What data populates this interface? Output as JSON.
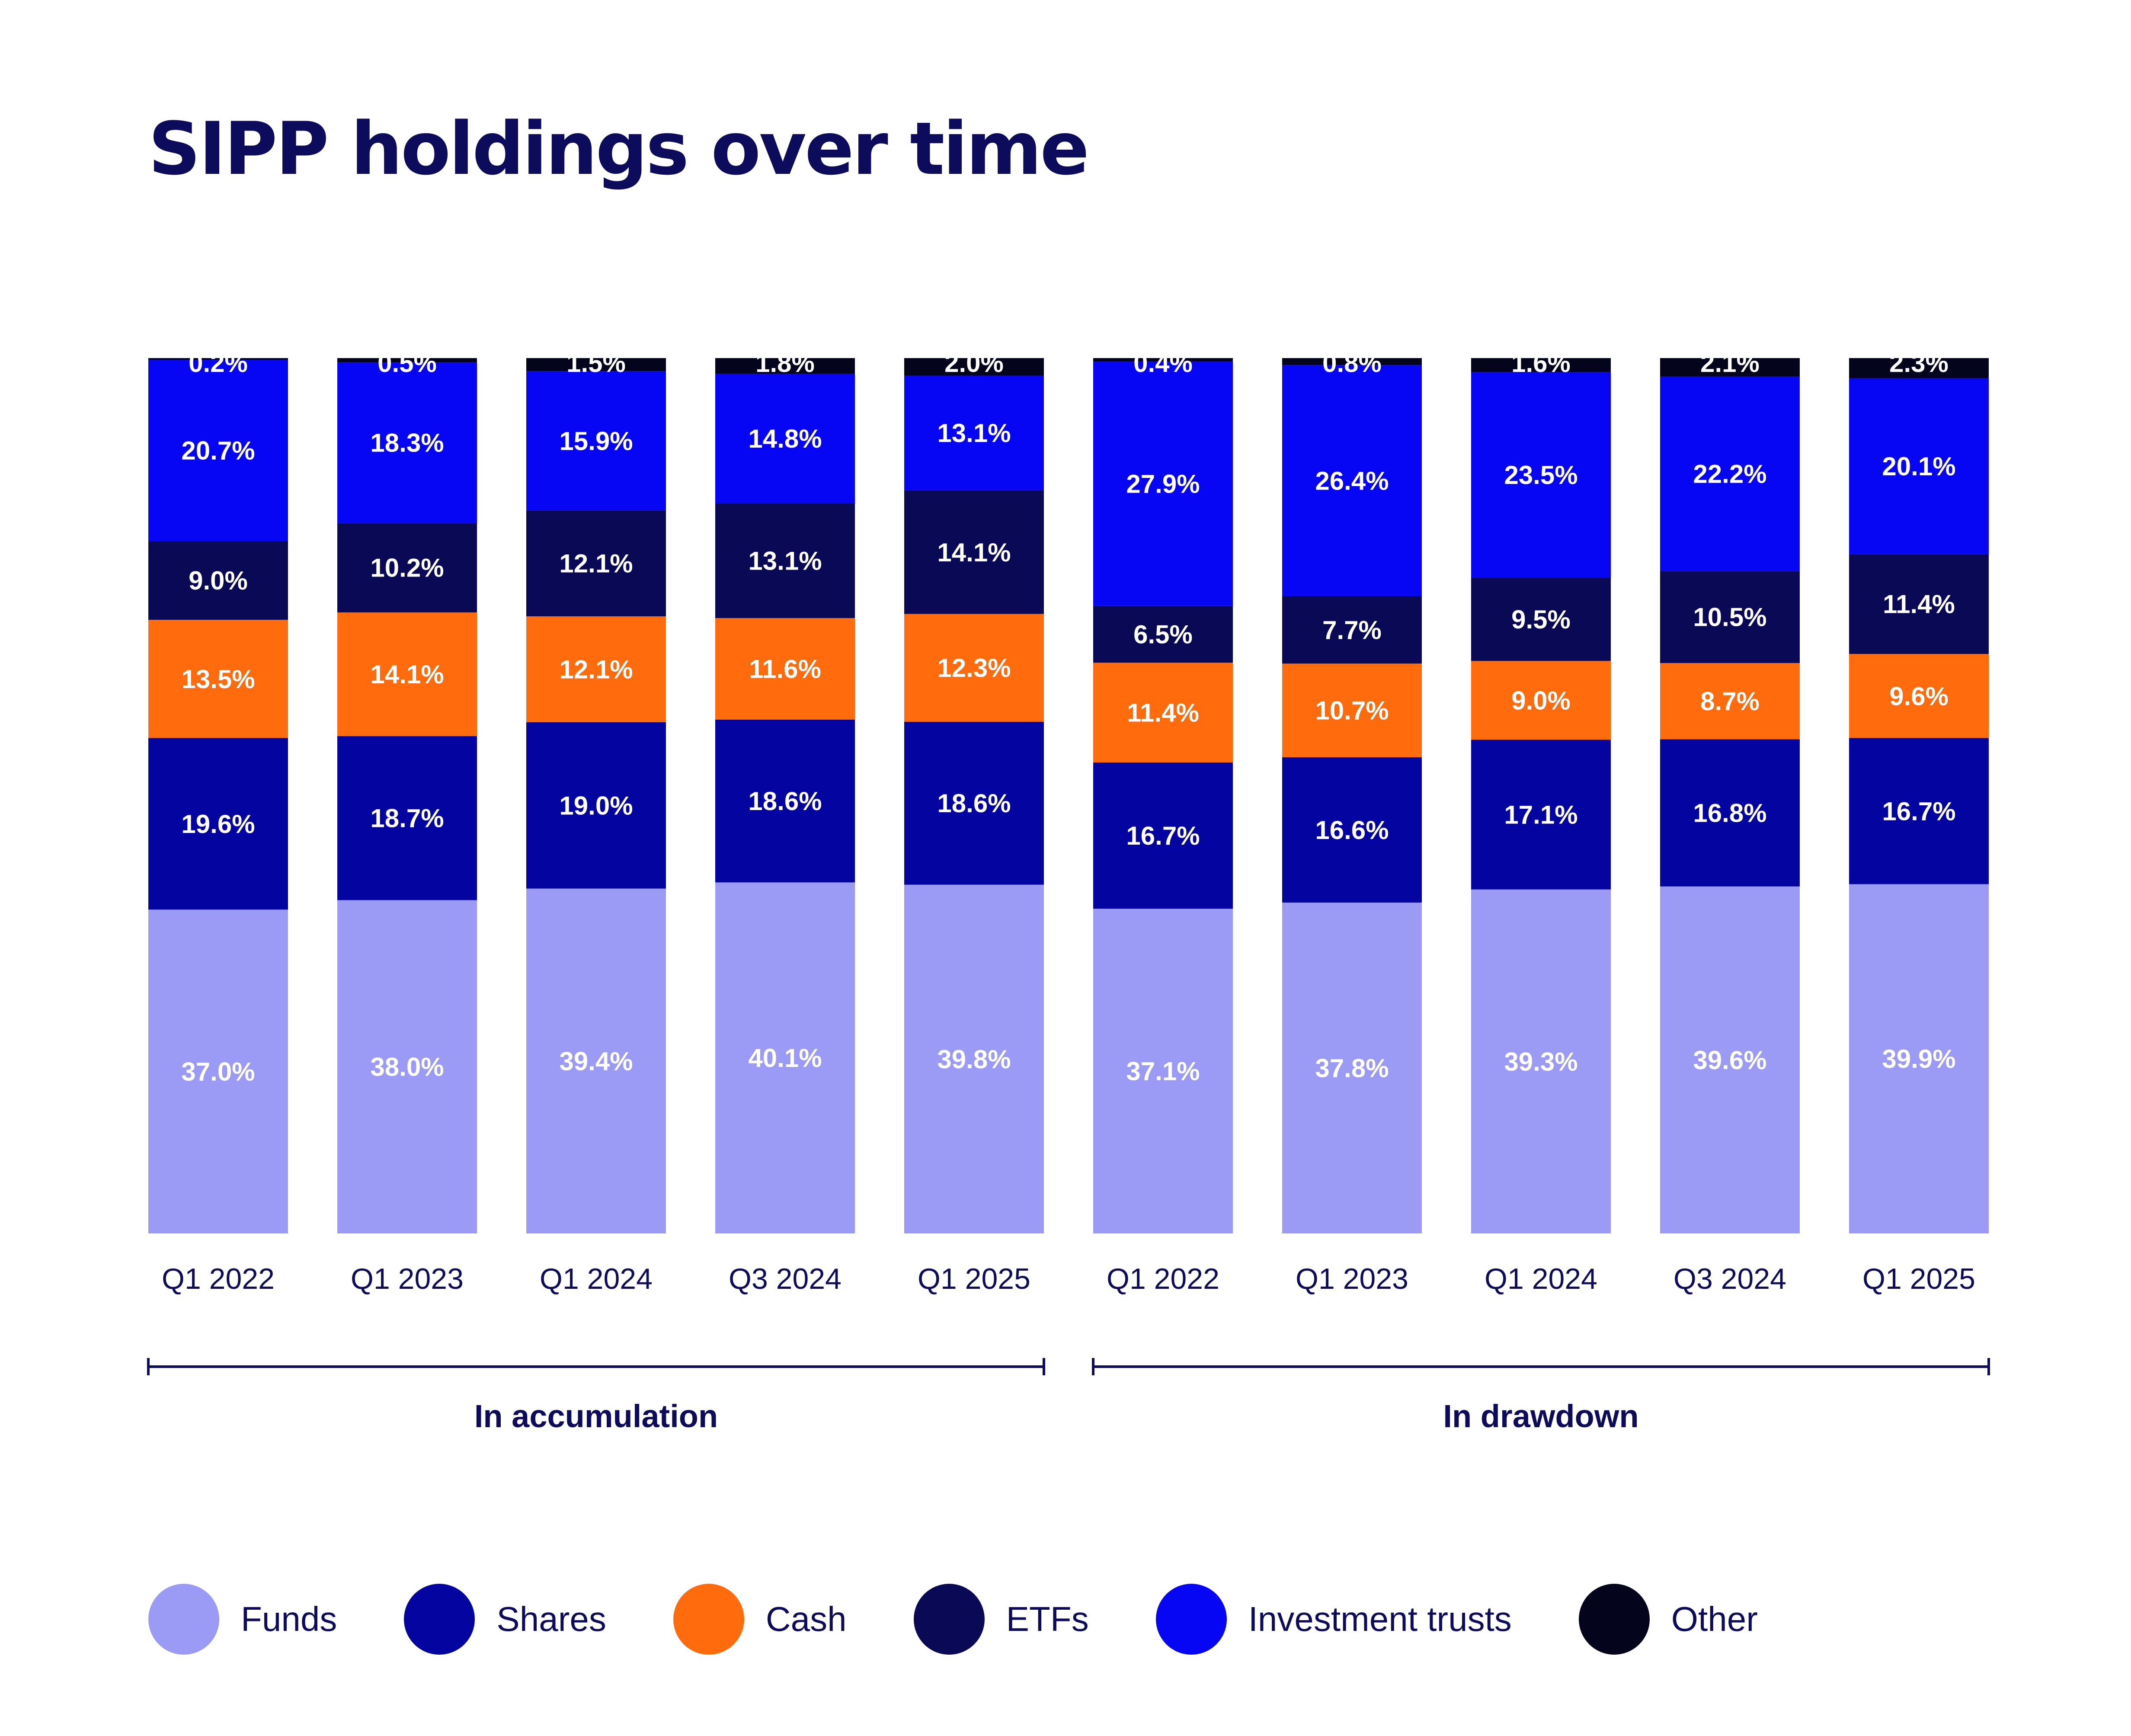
{
  "chart_data": {
    "type": "bar",
    "stacked": true,
    "title": "SIPP holdings over time",
    "xlabel": "",
    "ylabel": "",
    "ylim": [
      0,
      100
    ],
    "grid": false,
    "legend_position": "bottom",
    "groups": [
      {
        "label": "In accumulation",
        "categories": [
          "Q1 2022",
          "Q1 2023",
          "Q1 2024",
          "Q3 2024",
          "Q1 2025"
        ]
      },
      {
        "label": "In drawdown",
        "categories": [
          "Q1 2022",
          "Q1 2023",
          "Q1 2024",
          "Q3 2024",
          "Q1 2025"
        ]
      }
    ],
    "series": [
      {
        "name": "Funds",
        "color": "#9b9bf5",
        "values": [
          37.0,
          38.0,
          39.4,
          40.1,
          39.8,
          37.1,
          37.8,
          39.3,
          39.6,
          39.9
        ],
        "labels": [
          "37.0%",
          "38.0%",
          "39.4%",
          "40.1%",
          "39.8%",
          "37.1%",
          "37.8%",
          "39.3%",
          "39.6%",
          "39.9%"
        ]
      },
      {
        "name": "Shares",
        "color": "#0404a0",
        "values": [
          19.6,
          18.7,
          19.0,
          18.6,
          18.6,
          16.7,
          16.6,
          17.1,
          16.8,
          16.7
        ],
        "labels": [
          "19.6%",
          "18.7%",
          "19.0%",
          "18.6%",
          "18.6%",
          "16.7%",
          "16.6%",
          "17.1%",
          "16.8%",
          "16.7%"
        ]
      },
      {
        "name": "Cash",
        "color": "#ff6b0d",
        "values": [
          13.5,
          14.1,
          12.1,
          11.6,
          12.3,
          11.4,
          10.7,
          9.0,
          8.7,
          9.6
        ],
        "labels": [
          "13.5%",
          "14.1%",
          "12.1%",
          "11.6%",
          "12.3%",
          "11.4%",
          "10.7%",
          "9.0%",
          "8.7%",
          "9.6%"
        ]
      },
      {
        "name": "ETFs",
        "color": "#090955",
        "values": [
          9.0,
          10.2,
          12.1,
          13.1,
          14.1,
          6.5,
          7.7,
          9.5,
          10.5,
          11.4
        ],
        "labels": [
          "9.0%",
          "10.2%",
          "12.1%",
          "13.1%",
          "14.1%",
          "6.5%",
          "7.7%",
          "9.5%",
          "10.5%",
          "11.4%"
        ]
      },
      {
        "name": "Investment trusts",
        "color": "#0606f5",
        "values": [
          20.7,
          18.3,
          15.9,
          14.8,
          13.1,
          27.9,
          26.4,
          23.5,
          22.2,
          20.1
        ],
        "labels": [
          "20.7%",
          "18.3%",
          "15.9%",
          "14.8%",
          "13.1%",
          "27.9%",
          "26.4%",
          "23.5%",
          "22.2%",
          "20.1%"
        ]
      },
      {
        "name": "Other",
        "color": "#04041c",
        "values": [
          0.2,
          0.5,
          1.5,
          1.8,
          2.0,
          0.4,
          0.8,
          1.6,
          2.1,
          2.3
        ],
        "labels": [
          "0.2%",
          "0.5%",
          "1.5%",
          "1.8%",
          "2.0%",
          "0.4%",
          "0.8%",
          "1.6%",
          "2.1%",
          "2.3%"
        ]
      }
    ]
  }
}
